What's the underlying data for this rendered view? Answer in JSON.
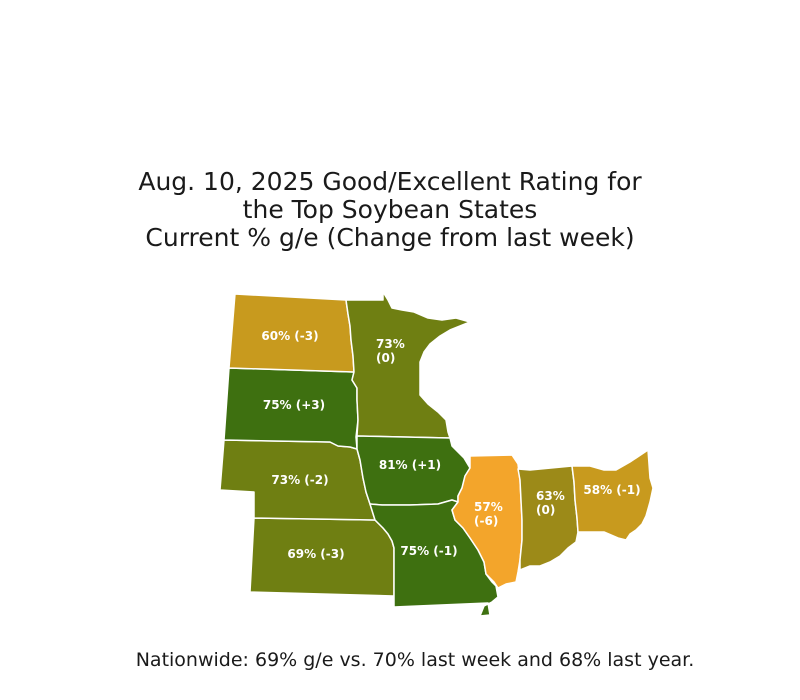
{
  "title": {
    "line1": "Aug. 10, 2025 Good/Excellent Rating for",
    "line2": "the Top Soybean States",
    "line3": "Current % g/e (Change from last week)"
  },
  "footer": "Nationwide: 69% g/e vs. 70% last week and 68% last year.",
  "states": {
    "north_dakota": {
      "label": "60% (-3)",
      "good_excellent_pct": 60,
      "change": -3,
      "color": "#C89A1E"
    },
    "minnesota": {
      "label_line1": "73%",
      "label_line2": "(0)",
      "good_excellent_pct": 73,
      "change": 0,
      "color": "#6F7F12"
    },
    "south_dakota": {
      "label": "75% (+3)",
      "good_excellent_pct": 75,
      "change": 3,
      "color": "#3E7010"
    },
    "iowa": {
      "label": "81% (+1)",
      "good_excellent_pct": 81,
      "change": 1,
      "color": "#3E7010"
    },
    "nebraska": {
      "label": "73% (-2)",
      "good_excellent_pct": 73,
      "change": -2,
      "color": "#6F7F12"
    },
    "kansas": {
      "label": "69% (-3)",
      "good_excellent_pct": 69,
      "change": -3,
      "color": "#6F7F12"
    },
    "missouri": {
      "label": "75% (-1)",
      "good_excellent_pct": 75,
      "change": -1,
      "color": "#3E7010"
    },
    "illinois": {
      "label_line1": "57%",
      "label_line2": "(-6)",
      "good_excellent_pct": 57,
      "change": -6,
      "color": "#F3A52B"
    },
    "indiana": {
      "label_line1": "63%",
      "label_line2": "(0)",
      "good_excellent_pct": 63,
      "change": 0,
      "color": "#9C8A18"
    },
    "ohio": {
      "label": "58% (-1)",
      "good_excellent_pct": 58,
      "change": -1,
      "color": "#C89A1E"
    }
  }
}
